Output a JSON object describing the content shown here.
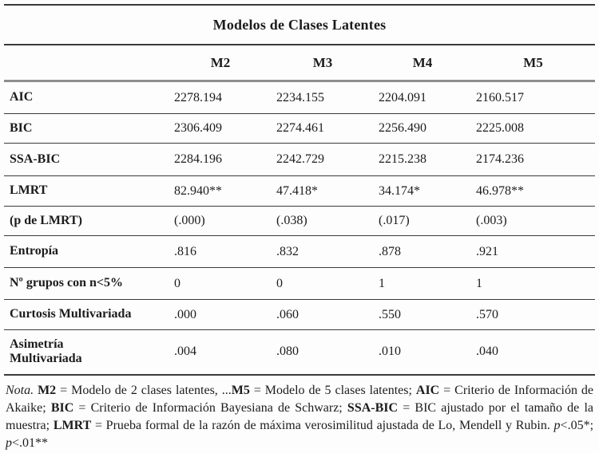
{
  "table": {
    "title": "Modelos de Clases Latentes",
    "columns": [
      "M2",
      "M3",
      "M4",
      "M5"
    ],
    "rows": [
      {
        "label": "AIC",
        "values": [
          "2278.194",
          "2234.155",
          "2204.091",
          "2160.517"
        ]
      },
      {
        "label": "BIC",
        "values": [
          "2306.409",
          "2274.461",
          "2256.490",
          "2225.008"
        ]
      },
      {
        "label": "SSA-BIC",
        "values": [
          "2284.196",
          "2242.729",
          "2215.238",
          "2174.236"
        ]
      },
      {
        "label": "LMRT",
        "values": [
          "82.940**",
          "47.418*",
          "34.174*",
          "46.978**"
        ]
      },
      {
        "label": "(p de LMRT)",
        "values": [
          "(.000)",
          "(.038)",
          "(.017)",
          "(.003)"
        ]
      },
      {
        "label": "Entropía",
        "values": [
          ".816",
          ".832",
          ".878",
          ".921"
        ]
      },
      {
        "label": "Nº grupos con n<5%",
        "label_rich": [
          {
            "t": "Nº grupos con "
          },
          {
            "t": "n",
            "i": true
          },
          {
            "t": "<5%"
          }
        ],
        "values": [
          "0",
          "0",
          "1",
          "1"
        ]
      },
      {
        "label": "Curtosis Multivariada",
        "values": [
          ".000",
          ".060",
          ".550",
          ".570"
        ]
      },
      {
        "label": "Asimetría\nMultivariada",
        "values": [
          ".004",
          ".080",
          ".010",
          ".040"
        ]
      }
    ]
  },
  "note": {
    "segments": [
      {
        "t": "Nota.",
        "i": true
      },
      {
        "t": " "
      },
      {
        "t": "M2",
        "b": true
      },
      {
        "t": " = Modelo de 2 clases latentes, ..."
      },
      {
        "t": "M5",
        "b": true
      },
      {
        "t": " = Modelo de 5 clases latentes; "
      },
      {
        "t": "AIC",
        "b": true
      },
      {
        "t": " = Criterio de Información de Akaike; "
      },
      {
        "t": "BIC",
        "b": true
      },
      {
        "t": " = Criterio de Información Bayesiana de Schwarz; "
      },
      {
        "t": "SSA-BIC",
        "b": true
      },
      {
        "t": " = BIC ajustado por el tamaño de la muestra; "
      },
      {
        "t": "LMRT",
        "b": true
      },
      {
        "t": " = Prueba formal de la razón de máxima verosimilitud ajustada de Lo, Mendell y Rubin. "
      },
      {
        "t": "p",
        "i": true
      },
      {
        "t": "<.05*; "
      },
      {
        "t": "p",
        "i": true
      },
      {
        "t": "<.01**"
      }
    ]
  },
  "colors": {
    "text": "#1c1c1c",
    "rule_dark": "#3a3a3a",
    "rule_gray": "#8e8e8e",
    "background": "#fdfdfd"
  }
}
